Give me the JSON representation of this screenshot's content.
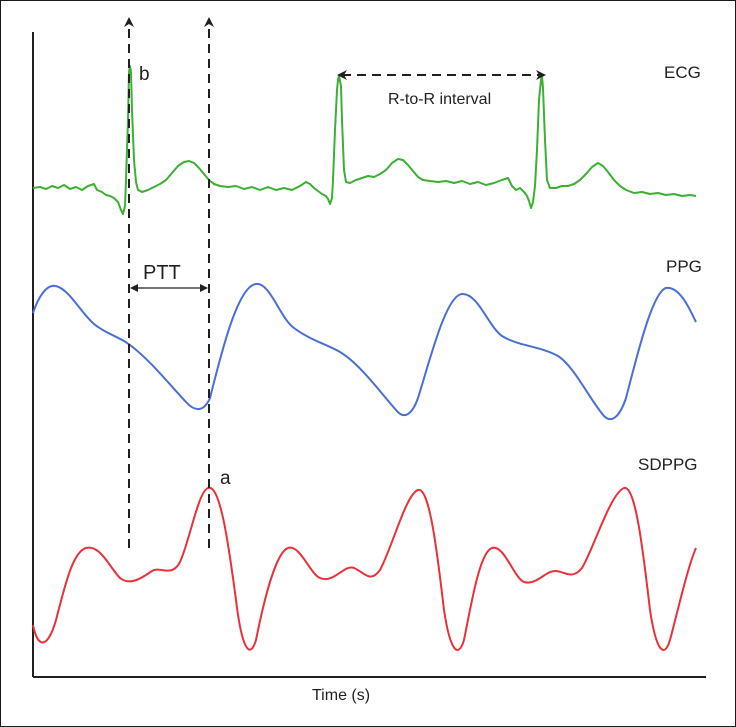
{
  "labels": {
    "ecg": "ECG",
    "ppg": "PPG",
    "sdppg": "SDPPG",
    "b": "b",
    "a": "a",
    "ptt": "PTT",
    "rr_interval": "R-to-R interval",
    "x_axis": "Time (s)"
  },
  "colors": {
    "ecg": "#3cb034",
    "ppg": "#4a6fd4",
    "sdppg": "#e8323a",
    "axis": "#231f20"
  }
}
